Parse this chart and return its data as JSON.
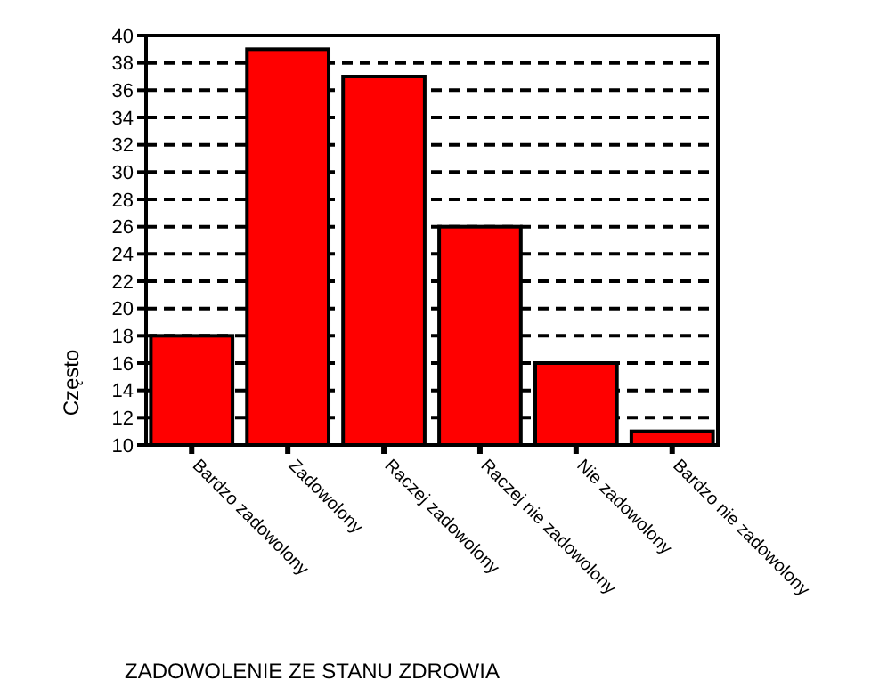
{
  "chart_data": {
    "type": "bar",
    "xlabel": "ZADOWOLENIE ZE STANU ZDROWIA",
    "ylabel": "Często",
    "categories": [
      "Bardzo zadowolony",
      "Zadowolony",
      "Raczej zadowolony",
      "Raczej nie zadowolony",
      "Nie zadowolony",
      "Bardzo nie zadowolony"
    ],
    "values": [
      18,
      39,
      37,
      26,
      16,
      11
    ],
    "color": "#ff0000",
    "ylim": [
      10,
      40
    ],
    "yticks": [
      10,
      12,
      14,
      16,
      18,
      20,
      22,
      24,
      26,
      28,
      30,
      32,
      34,
      36,
      38,
      40
    ],
    "grid": "y"
  }
}
